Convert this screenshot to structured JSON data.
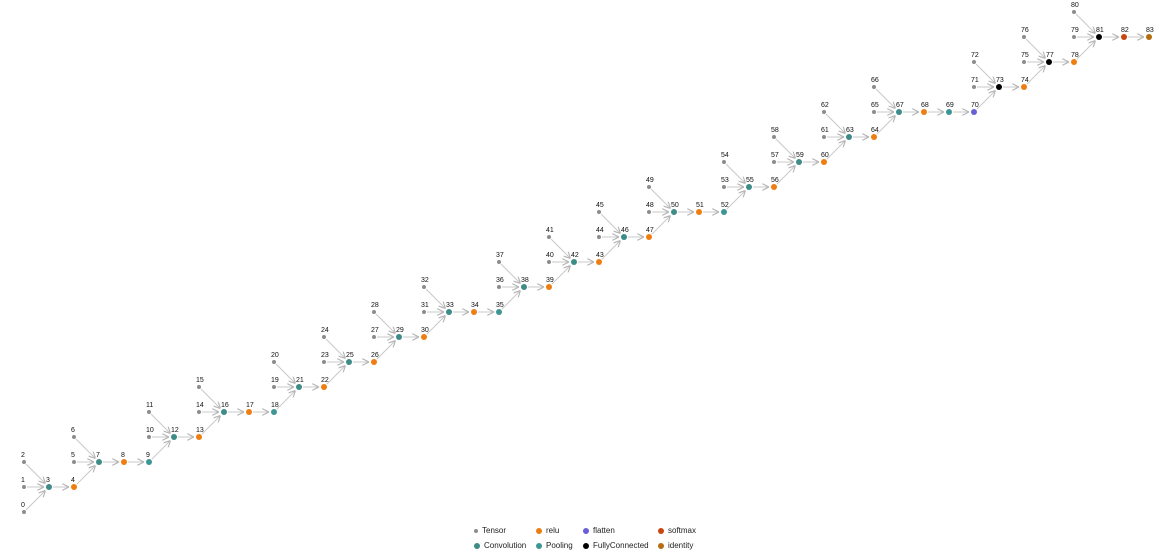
{
  "colors": {
    "edge": "#c8c8c8",
    "Tensor": "#8c8c8c",
    "Convolution": "#3d8c87",
    "Pooling": "#3d9693",
    "relu": "#ee7d12",
    "flatten": "#6a5fd7",
    "FullyConnected": "#000000",
    "softmax": "#c8470f",
    "identity": "#b56d12"
  },
  "legend": {
    "items": [
      {
        "type": "Tensor",
        "label": "Tensor"
      },
      {
        "type": "Convolution",
        "label": "Convolution"
      },
      {
        "type": "relu",
        "label": "relu"
      },
      {
        "type": "Pooling",
        "label": "Pooling"
      },
      {
        "type": "flatten",
        "label": "flatten"
      },
      {
        "type": "FullyConnected",
        "label": "FullyConnected"
      },
      {
        "type": "softmax",
        "label": "softmax"
      },
      {
        "type": "identity",
        "label": "identity"
      }
    ]
  },
  "graph": {
    "nodes": [
      {
        "id": 0,
        "label": "0",
        "type": "Tensor"
      },
      {
        "id": 1,
        "label": "1",
        "type": "Tensor"
      },
      {
        "id": 2,
        "label": "2",
        "type": "Tensor"
      },
      {
        "id": 3,
        "label": "3",
        "type": "Convolution"
      },
      {
        "id": 4,
        "label": "4",
        "type": "relu"
      },
      {
        "id": 5,
        "label": "5",
        "type": "Tensor"
      },
      {
        "id": 6,
        "label": "6",
        "type": "Tensor"
      },
      {
        "id": 7,
        "label": "7",
        "type": "Convolution"
      },
      {
        "id": 8,
        "label": "8",
        "type": "relu"
      },
      {
        "id": 9,
        "label": "9",
        "type": "Pooling"
      },
      {
        "id": 10,
        "label": "10",
        "type": "Tensor"
      },
      {
        "id": 11,
        "label": "11",
        "type": "Tensor"
      },
      {
        "id": 12,
        "label": "12",
        "type": "Convolution"
      },
      {
        "id": 13,
        "label": "13",
        "type": "relu"
      },
      {
        "id": 14,
        "label": "14",
        "type": "Tensor"
      },
      {
        "id": 15,
        "label": "15",
        "type": "Tensor"
      },
      {
        "id": 16,
        "label": "16",
        "type": "Convolution"
      },
      {
        "id": 17,
        "label": "17",
        "type": "relu"
      },
      {
        "id": 18,
        "label": "18",
        "type": "Pooling"
      },
      {
        "id": 19,
        "label": "19",
        "type": "Tensor"
      },
      {
        "id": 20,
        "label": "20",
        "type": "Tensor"
      },
      {
        "id": 21,
        "label": "21",
        "type": "Convolution"
      },
      {
        "id": 22,
        "label": "22",
        "type": "relu"
      },
      {
        "id": 23,
        "label": "23",
        "type": "Tensor"
      },
      {
        "id": 24,
        "label": "24",
        "type": "Tensor"
      },
      {
        "id": 25,
        "label": "25",
        "type": "Convolution"
      },
      {
        "id": 26,
        "label": "26",
        "type": "relu"
      },
      {
        "id": 27,
        "label": "27",
        "type": "Tensor"
      },
      {
        "id": 28,
        "label": "28",
        "type": "Tensor"
      },
      {
        "id": 29,
        "label": "29",
        "type": "Convolution"
      },
      {
        "id": 30,
        "label": "30",
        "type": "relu"
      },
      {
        "id": 31,
        "label": "31",
        "type": "Tensor"
      },
      {
        "id": 32,
        "label": "32",
        "type": "Tensor"
      },
      {
        "id": 33,
        "label": "33",
        "type": "Convolution"
      },
      {
        "id": 34,
        "label": "34",
        "type": "relu"
      },
      {
        "id": 35,
        "label": "35",
        "type": "Pooling"
      },
      {
        "id": 36,
        "label": "36",
        "type": "Tensor"
      },
      {
        "id": 37,
        "label": "37",
        "type": "Tensor"
      },
      {
        "id": 38,
        "label": "38",
        "type": "Convolution"
      },
      {
        "id": 39,
        "label": "39",
        "type": "relu"
      },
      {
        "id": 40,
        "label": "40",
        "type": "Tensor"
      },
      {
        "id": 41,
        "label": "41",
        "type": "Tensor"
      },
      {
        "id": 42,
        "label": "42",
        "type": "Convolution"
      },
      {
        "id": 43,
        "label": "43",
        "type": "relu"
      },
      {
        "id": 44,
        "label": "44",
        "type": "Tensor"
      },
      {
        "id": 45,
        "label": "45",
        "type": "Tensor"
      },
      {
        "id": 46,
        "label": "46",
        "type": "Convolution"
      },
      {
        "id": 47,
        "label": "47",
        "type": "relu"
      },
      {
        "id": 48,
        "label": "48",
        "type": "Tensor"
      },
      {
        "id": 49,
        "label": "49",
        "type": "Tensor"
      },
      {
        "id": 50,
        "label": "50",
        "type": "Convolution"
      },
      {
        "id": 51,
        "label": "51",
        "type": "relu"
      },
      {
        "id": 52,
        "label": "52",
        "type": "Pooling"
      },
      {
        "id": 53,
        "label": "53",
        "type": "Tensor"
      },
      {
        "id": 54,
        "label": "54",
        "type": "Tensor"
      },
      {
        "id": 55,
        "label": "55",
        "type": "Convolution"
      },
      {
        "id": 56,
        "label": "56",
        "type": "relu"
      },
      {
        "id": 57,
        "label": "57",
        "type": "Tensor"
      },
      {
        "id": 58,
        "label": "58",
        "type": "Tensor"
      },
      {
        "id": 59,
        "label": "59",
        "type": "Convolution"
      },
      {
        "id": 60,
        "label": "60",
        "type": "relu"
      },
      {
        "id": 61,
        "label": "61",
        "type": "Tensor"
      },
      {
        "id": 62,
        "label": "62",
        "type": "Tensor"
      },
      {
        "id": 63,
        "label": "63",
        "type": "Convolution"
      },
      {
        "id": 64,
        "label": "64",
        "type": "relu"
      },
      {
        "id": 65,
        "label": "65",
        "type": "Tensor"
      },
      {
        "id": 66,
        "label": "66",
        "type": "Tensor"
      },
      {
        "id": 67,
        "label": "67",
        "type": "Convolution"
      },
      {
        "id": 68,
        "label": "68",
        "type": "relu"
      },
      {
        "id": 69,
        "label": "69",
        "type": "Pooling"
      },
      {
        "id": 70,
        "label": "70",
        "type": "flatten"
      },
      {
        "id": 71,
        "label": "71",
        "type": "Tensor"
      },
      {
        "id": 72,
        "label": "72",
        "type": "Tensor"
      },
      {
        "id": 73,
        "label": "73",
        "type": "FullyConnected"
      },
      {
        "id": 74,
        "label": "74",
        "type": "relu"
      },
      {
        "id": 75,
        "label": "75",
        "type": "Tensor"
      },
      {
        "id": 76,
        "label": "76",
        "type": "Tensor"
      },
      {
        "id": 77,
        "label": "77",
        "type": "FullyConnected"
      },
      {
        "id": 78,
        "label": "78",
        "type": "relu"
      },
      {
        "id": 79,
        "label": "79",
        "type": "Tensor"
      },
      {
        "id": 80,
        "label": "80",
        "type": "Tensor"
      },
      {
        "id": 81,
        "label": "81",
        "type": "FullyConnected"
      },
      {
        "id": 82,
        "label": "82",
        "type": "softmax"
      },
      {
        "id": 83,
        "label": "83",
        "type": "identity"
      }
    ],
    "edges": [
      [
        0,
        3
      ],
      [
        1,
        3
      ],
      [
        2,
        3
      ],
      [
        3,
        4
      ],
      [
        4,
        7
      ],
      [
        5,
        7
      ],
      [
        6,
        7
      ],
      [
        7,
        8
      ],
      [
        8,
        9
      ],
      [
        9,
        12
      ],
      [
        10,
        12
      ],
      [
        11,
        12
      ],
      [
        12,
        13
      ],
      [
        13,
        16
      ],
      [
        14,
        16
      ],
      [
        15,
        16
      ],
      [
        16,
        17
      ],
      [
        17,
        18
      ],
      [
        18,
        21
      ],
      [
        19,
        21
      ],
      [
        20,
        21
      ],
      [
        21,
        22
      ],
      [
        22,
        25
      ],
      [
        23,
        25
      ],
      [
        24,
        25
      ],
      [
        25,
        26
      ],
      [
        26,
        29
      ],
      [
        27,
        29
      ],
      [
        28,
        29
      ],
      [
        29,
        30
      ],
      [
        30,
        33
      ],
      [
        31,
        33
      ],
      [
        32,
        33
      ],
      [
        33,
        34
      ],
      [
        34,
        35
      ],
      [
        35,
        38
      ],
      [
        36,
        38
      ],
      [
        37,
        38
      ],
      [
        38,
        39
      ],
      [
        39,
        42
      ],
      [
        40,
        42
      ],
      [
        41,
        42
      ],
      [
        42,
        43
      ],
      [
        43,
        46
      ],
      [
        44,
        46
      ],
      [
        45,
        46
      ],
      [
        46,
        47
      ],
      [
        47,
        50
      ],
      [
        48,
        50
      ],
      [
        49,
        50
      ],
      [
        50,
        51
      ],
      [
        51,
        52
      ],
      [
        52,
        55
      ],
      [
        53,
        55
      ],
      [
        54,
        55
      ],
      [
        55,
        56
      ],
      [
        56,
        59
      ],
      [
        57,
        59
      ],
      [
        58,
        59
      ],
      [
        59,
        60
      ],
      [
        60,
        63
      ],
      [
        61,
        63
      ],
      [
        62,
        63
      ],
      [
        63,
        64
      ],
      [
        64,
        67
      ],
      [
        65,
        67
      ],
      [
        66,
        67
      ],
      [
        67,
        68
      ],
      [
        68,
        69
      ],
      [
        69,
        70
      ],
      [
        70,
        73
      ],
      [
        71,
        73
      ],
      [
        72,
        73
      ],
      [
        73,
        74
      ],
      [
        74,
        77
      ],
      [
        75,
        77
      ],
      [
        76,
        77
      ],
      [
        77,
        78
      ],
      [
        78,
        81
      ],
      [
        79,
        81
      ],
      [
        80,
        81
      ],
      [
        81,
        82
      ],
      [
        82,
        83
      ]
    ]
  }
}
